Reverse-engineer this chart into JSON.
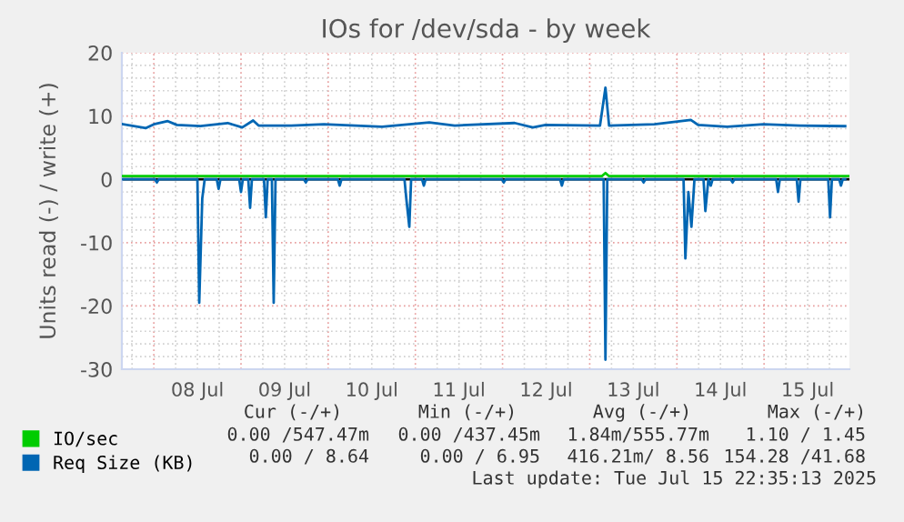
{
  "chart_data": {
    "type": "line",
    "title": "IOs for /dev/sda - by week",
    "ylabel": "Units read (-) / write (+)",
    "xlim": [
      "2025-07-07T15:12",
      "2025-07-15T23:30"
    ],
    "xticks": [
      {
        "value": "2025-07-08T12:00",
        "label": "08 Jul"
      },
      {
        "value": "2025-07-09T12:00",
        "label": "09 Jul"
      },
      {
        "value": "2025-07-10T12:00",
        "label": "10 Jul"
      },
      {
        "value": "2025-07-11T12:00",
        "label": "11 Jul"
      },
      {
        "value": "2025-07-12T12:00",
        "label": "12 Jul"
      },
      {
        "value": "2025-07-13T12:00",
        "label": "13 Jul"
      },
      {
        "value": "2025-07-14T12:00",
        "label": "14 Jul"
      },
      {
        "value": "2025-07-15T12:00",
        "label": "15 Jul"
      }
    ],
    "ylim": [
      -30,
      20
    ],
    "yticks": [
      -30,
      -20,
      -10,
      0,
      10,
      20
    ],
    "grid": true,
    "legend": "bottom",
    "ref_lines": [
      {
        "axis": "y",
        "value": 0,
        "color": "#000000"
      }
    ],
    "series": [
      {
        "name": "IO/sec",
        "color": "#00cc00",
        "x": [
          "2025-07-07T15:12",
          "2025-07-13T03:20",
          "2025-07-13T04:20",
          "2025-07-13T05:20",
          "2025-07-15T23:30"
        ],
        "values": [
          0.5,
          0.5,
          1,
          0.5,
          0.5
        ]
      },
      {
        "name": "Req Size (KB)",
        "color": "#0066b3",
        "x": [
          "2025-07-07T15:30",
          "2025-07-07T21:50",
          "2025-07-08T00:00",
          "2025-07-08T03:50",
          "2025-07-08T06:20",
          "2025-07-08T12:50",
          "2025-07-08T20:20",
          "2025-07-09T00:20",
          "2025-07-09T03:20",
          "2025-07-09T04:50",
          "2025-07-09T13:50",
          "2025-07-09T22:50",
          "2025-07-10T14:50",
          "2025-07-11T03:50",
          "2025-07-11T10:50",
          "2025-07-12T03:20",
          "2025-07-12T08:20",
          "2025-07-12T11:50",
          "2025-07-13T02:50",
          "2025-07-13T04:20",
          "2025-07-13T05:20",
          "2025-07-13T17:50",
          "2025-07-14T03:50",
          "2025-07-14T05:50",
          "2025-07-14T13:50",
          "2025-07-14T23:50",
          "2025-07-15T09:50",
          "2025-07-15T22:20"
        ],
        "values": [
          8.7,
          8.1,
          8.7,
          9.2,
          8.6,
          8.4,
          8.9,
          8.2,
          9.3,
          8.5,
          8.5,
          8.7,
          8.3,
          9.0,
          8.5,
          8.9,
          8.2,
          8.6,
          8.5,
          14.5,
          8.5,
          8.7,
          9.4,
          8.6,
          8.3,
          8.7,
          8.5,
          8.4
        ]
      },
      {
        "color": "#0066b3",
        "x": [
          "2025-07-07T15:30",
          "2025-07-08T00:20",
          "2025-07-08T00:50",
          "2025-07-08T01:20",
          "2025-07-08T12:00",
          "2025-07-08T12:30",
          "2025-07-08T13:20",
          "2025-07-08T14:00",
          "2025-07-08T17:20",
          "2025-07-08T17:50",
          "2025-07-08T18:20",
          "2025-07-08T23:30",
          "2025-07-09T00:00",
          "2025-07-09T00:30",
          "2025-07-09T02:00",
          "2025-07-09T02:30",
          "2025-07-09T03:00",
          "2025-07-09T06:20",
          "2025-07-09T06:50",
          "2025-07-09T07:20",
          "2025-07-09T08:30",
          "2025-07-09T09:00",
          "2025-07-09T09:30",
          "2025-07-09T17:20",
          "2025-07-09T17:50",
          "2025-07-09T18:20",
          "2025-07-10T02:40",
          "2025-07-10T03:10",
          "2025-07-10T03:40",
          "2025-07-10T21:00",
          "2025-07-10T21:30",
          "2025-07-10T22:20",
          "2025-07-10T22:50",
          "2025-07-11T01:50",
          "2025-07-11T02:20",
          "2025-07-11T02:50",
          "2025-07-11T23:50",
          "2025-07-12T00:20",
          "2025-07-12T00:50",
          "2025-07-12T15:50",
          "2025-07-12T16:20",
          "2025-07-12T16:50",
          "2025-07-13T03:50",
          "2025-07-13T04:20",
          "2025-07-13T04:50",
          "2025-07-13T14:20",
          "2025-07-13T14:50",
          "2025-07-13T15:20",
          "2025-07-14T01:50",
          "2025-07-14T02:20",
          "2025-07-14T03:10",
          "2025-07-14T04:00",
          "2025-07-14T04:50",
          "2025-07-14T07:20",
          "2025-07-14T07:50",
          "2025-07-14T08:40",
          "2025-07-14T09:20",
          "2025-07-14T09:50",
          "2025-07-14T14:50",
          "2025-07-14T15:20",
          "2025-07-14T15:50",
          "2025-07-15T03:20",
          "2025-07-15T03:50",
          "2025-07-15T04:20",
          "2025-07-15T09:00",
          "2025-07-15T09:30",
          "2025-07-15T10:00",
          "2025-07-15T17:40",
          "2025-07-15T18:10",
          "2025-07-15T18:40",
          "2025-07-15T20:40",
          "2025-07-15T21:10",
          "2025-07-15T21:40",
          "2025-07-15T22:20"
        ],
        "values": [
          0,
          0,
          -0.5,
          0,
          0,
          -19.5,
          -3,
          0,
          0,
          -1.5,
          0,
          0,
          -2,
          0,
          0,
          -4.5,
          0,
          0,
          -6,
          0,
          0,
          -19.5,
          0,
          0,
          -0.5,
          0,
          0,
          -1,
          0,
          0,
          -3,
          -7.5,
          0,
          0,
          -1,
          0,
          0,
          -0.5,
          0,
          0,
          -1,
          0,
          0,
          -28.5,
          0,
          0,
          -0.5,
          0,
          0,
          -12.5,
          -2,
          -7.5,
          0,
          0,
          -5,
          0,
          -1,
          0,
          0,
          -0.5,
          0,
          0,
          -2,
          0,
          0,
          -3.5,
          0,
          0,
          -6,
          0,
          0,
          -1,
          0,
          0
        ]
      }
    ],
    "annotations": [
      "Cur (-/+)",
      "Min (-/+)",
      "Avg (-/+)",
      "Max (-/+)",
      "0.00 /547.47m",
      "0.00 /437.45m",
      "1.84m/555.77m",
      "1.10 / 1.45",
      "0.00 / 8.64",
      "0.00 / 6.95",
      "416.21m/ 8.56",
      "154.28 /41.68",
      "Last update: Tue Jul 15 22:35:13 2025"
    ]
  }
}
